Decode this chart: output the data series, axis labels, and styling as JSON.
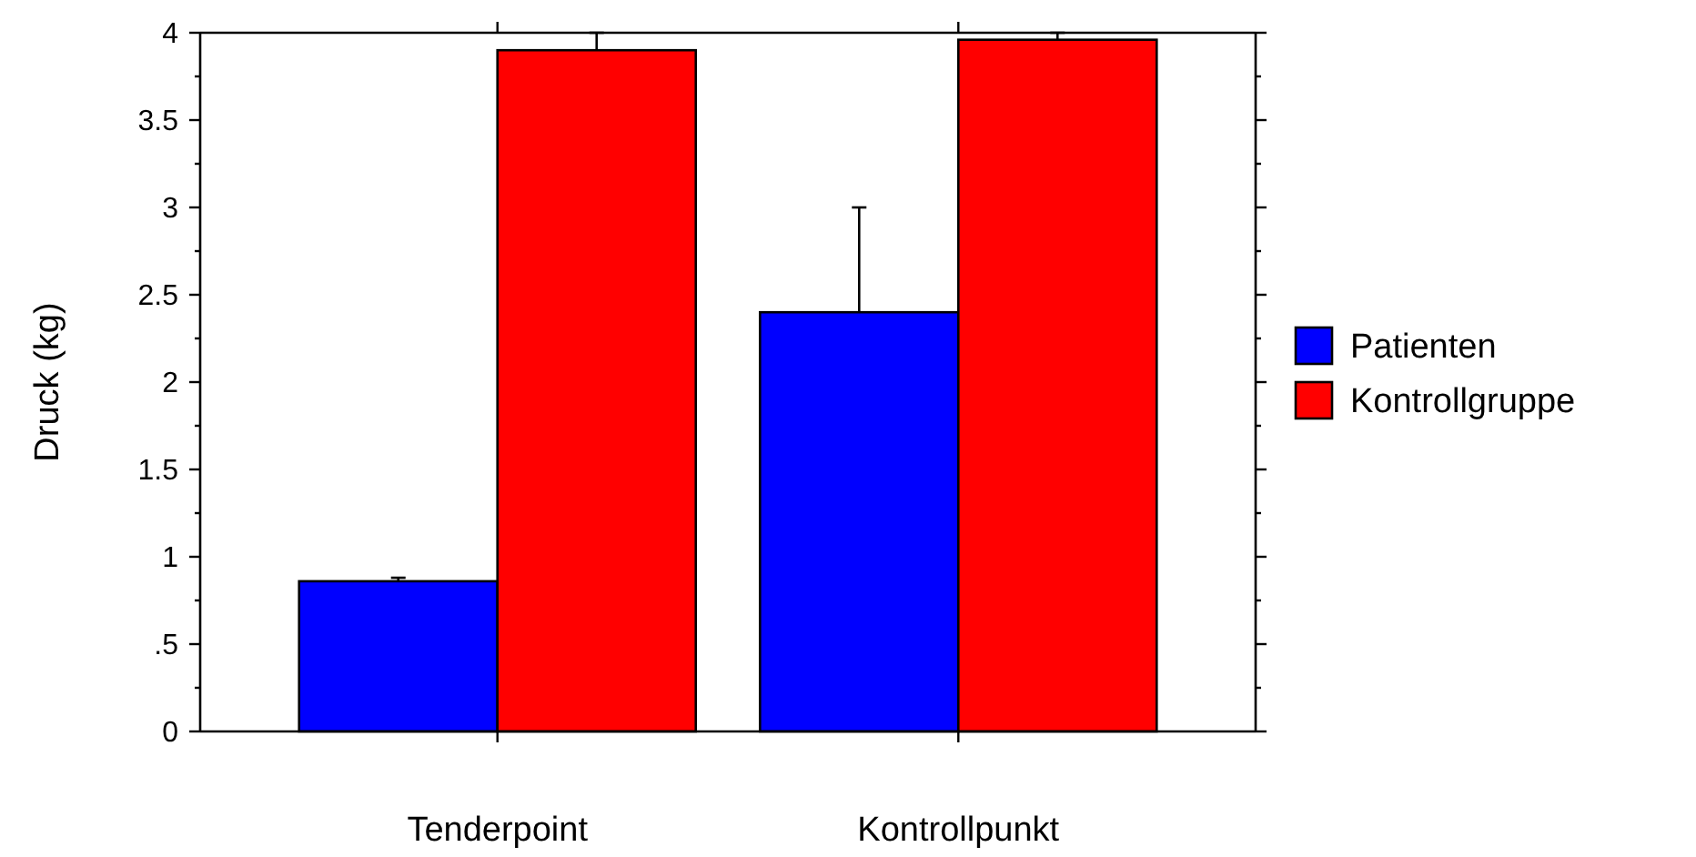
{
  "chart_data": {
    "type": "bar",
    "ylabel": "Druck (kg)",
    "categories": [
      "Tenderpoint",
      "Kontrollpunkt"
    ],
    "series": [
      {
        "name": "Patienten",
        "color": "#0000ff",
        "values": [
          0.86,
          2.4
        ],
        "errors": [
          0.02,
          0.6
        ]
      },
      {
        "name": "Kontrollgruppe",
        "color": "#ff0000",
        "values": [
          3.9,
          3.96
        ],
        "errors": [
          0.1,
          0.04
        ]
      }
    ],
    "ylim": [
      0,
      4
    ],
    "yticks": [
      0,
      {
        "value": 0.25,
        "label": null
      },
      {
        "value": 0.5,
        "label": ".5"
      },
      {
        "value": 0.75,
        "label": null
      },
      1,
      {
        "value": 1.25,
        "label": null
      },
      1.5,
      {
        "value": 1.75,
        "label": null
      },
      2,
      {
        "value": 2.25,
        "label": null
      },
      2.5,
      {
        "value": 2.75,
        "label": null
      },
      3,
      {
        "value": 3.25,
        "label": null
      },
      3.5,
      {
        "value": 3.75,
        "label": null
      },
      4
    ],
    "grid": false,
    "legend": "right"
  }
}
